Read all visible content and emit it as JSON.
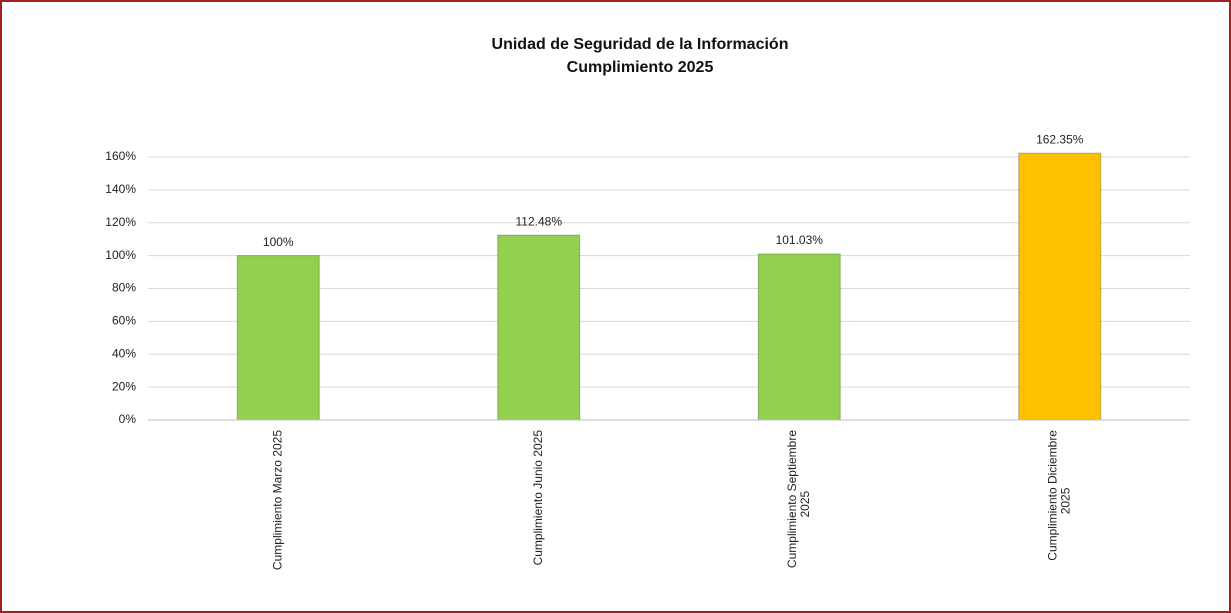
{
  "chart_data": {
    "type": "bar",
    "title": "Unidad de Seguridad de la Información",
    "subtitle": "Cumplimiento 2025",
    "categories": [
      "Cumplimiento Marzo 2025",
      "Cumplimiento Junio 2025",
      "Cumplimiento Septiembre 2025",
      "Cumplimiento Diciembre 2025"
    ],
    "values": [
      100,
      112.48,
      101.03,
      162.35
    ],
    "value_labels": [
      "100%",
      "112.48%",
      "101.03%",
      "162.35%"
    ],
    "colors": [
      "#92d050",
      "#92d050",
      "#92d050",
      "#ffc000"
    ],
    "ylim": [
      0,
      160
    ],
    "yticks": [
      {
        "value": 0,
        "label": "0%"
      },
      {
        "value": 20,
        "label": "20%"
      },
      {
        "value": 40,
        "label": "40%"
      },
      {
        "value": 60,
        "label": "60%"
      },
      {
        "value": 80,
        "label": "80%"
      },
      {
        "value": 100,
        "label": "100%"
      },
      {
        "value": 120,
        "label": "120%"
      },
      {
        "value": 140,
        "label": "140%"
      },
      {
        "value": 160,
        "label": "160%"
      }
    ],
    "grid": true
  }
}
